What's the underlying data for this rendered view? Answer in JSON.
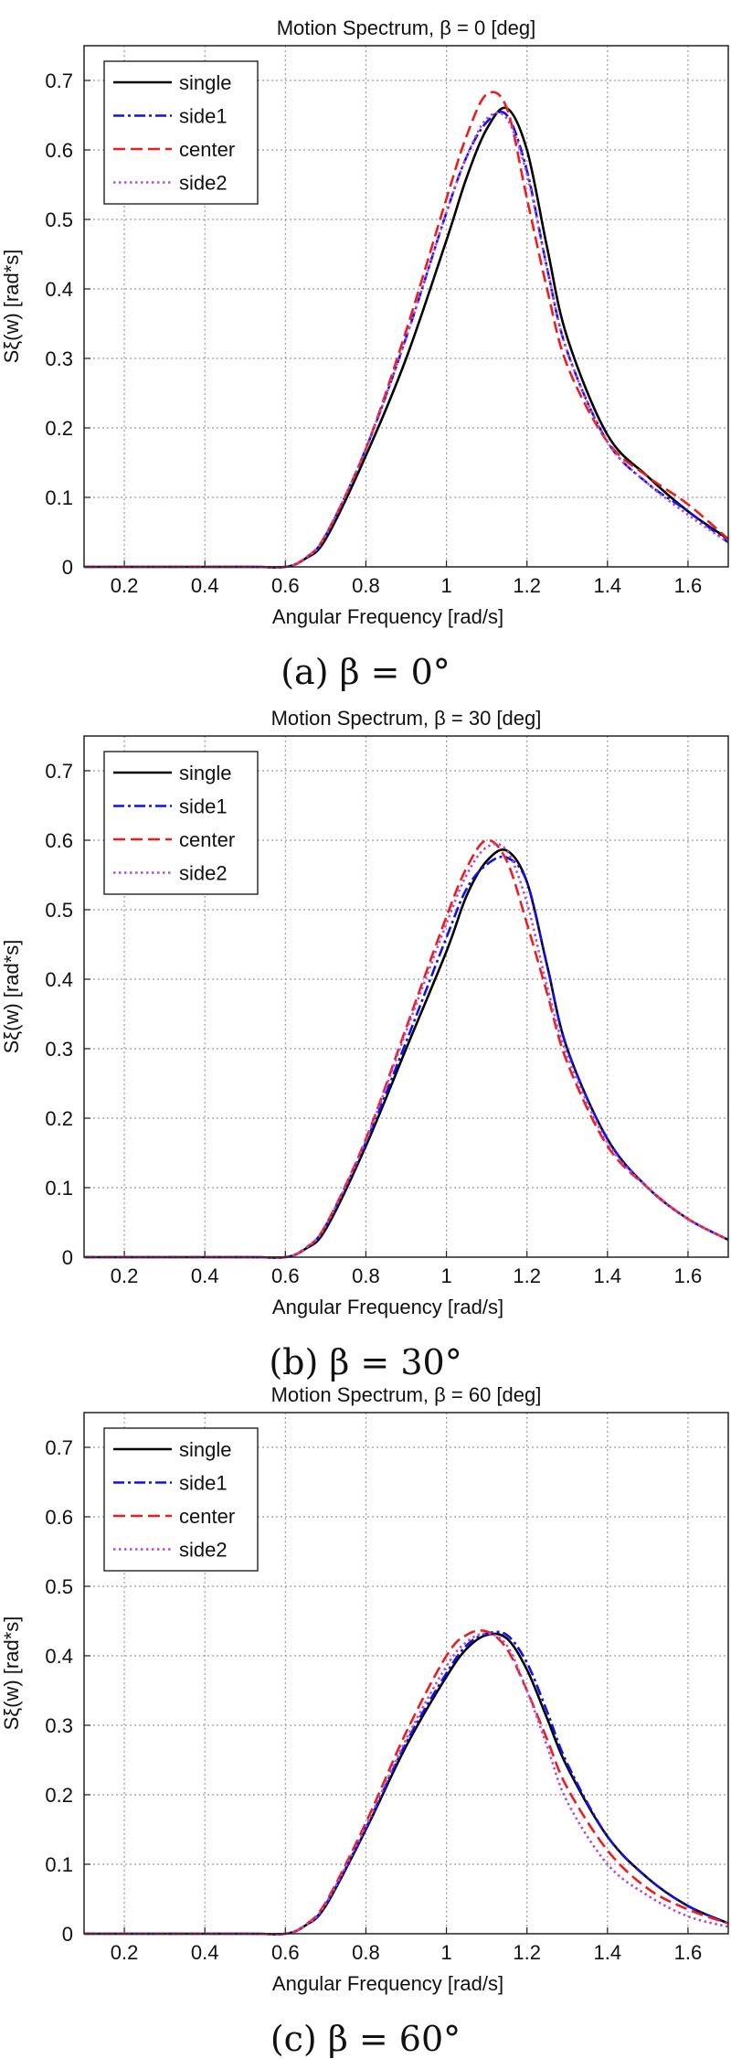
{
  "chart_data": [
    {
      "type": "line",
      "title": "Motion Spectrum,  β = 0 [deg]",
      "caption": "(a)  β = 0°",
      "xlabel": "Angular Frequency [rad/s]",
      "ylabel": "Sξ(w) [rad*s]",
      "xlim": [
        0.1,
        1.7
      ],
      "ylim": [
        0,
        0.75
      ],
      "xticks": [
        "0.2",
        "0.4",
        "0.6",
        "0.8",
        "1",
        "1.2",
        "1.4",
        "1.6"
      ],
      "yticks": [
        "0",
        "0.1",
        "0.2",
        "0.3",
        "0.4",
        "0.5",
        "0.6",
        "0.7"
      ],
      "grid": true,
      "legend_position": "top-left",
      "series": [
        {
          "name": "single",
          "color": "#000000",
          "dash": "solid",
          "x": [
            0.1,
            0.5,
            0.6,
            0.65,
            0.7,
            0.8,
            0.9,
            1.0,
            1.05,
            1.1,
            1.15,
            1.2,
            1.25,
            1.3,
            1.4,
            1.5,
            1.6,
            1.7
          ],
          "y": [
            0,
            0,
            0,
            0.012,
            0.04,
            0.16,
            0.3,
            0.47,
            0.56,
            0.63,
            0.66,
            0.6,
            0.46,
            0.33,
            0.19,
            0.13,
            0.08,
            0.04
          ]
        },
        {
          "name": "side1",
          "color": "#1010ee",
          "dash": "dashdot",
          "x": [
            0.1,
            0.5,
            0.6,
            0.65,
            0.7,
            0.8,
            0.9,
            1.0,
            1.05,
            1.1,
            1.15,
            1.2,
            1.25,
            1.3,
            1.4,
            1.5,
            1.6,
            1.7
          ],
          "y": [
            0,
            0,
            0,
            0.013,
            0.045,
            0.17,
            0.33,
            0.51,
            0.59,
            0.64,
            0.65,
            0.57,
            0.43,
            0.31,
            0.18,
            0.12,
            0.08,
            0.035
          ]
        },
        {
          "name": "center",
          "color": "#ee1c1c",
          "dash": "dashed",
          "x": [
            0.1,
            0.5,
            0.6,
            0.65,
            0.7,
            0.8,
            0.9,
            1.0,
            1.05,
            1.1,
            1.15,
            1.2,
            1.25,
            1.3,
            1.4,
            1.5,
            1.6,
            1.7
          ],
          "y": [
            0,
            0,
            0,
            0.013,
            0.046,
            0.17,
            0.34,
            0.53,
            0.62,
            0.68,
            0.66,
            0.53,
            0.4,
            0.29,
            0.18,
            0.13,
            0.09,
            0.04
          ]
        },
        {
          "name": "side2",
          "color": "#b84ad0",
          "dash": "dotted",
          "x": [
            0.1,
            0.5,
            0.6,
            0.65,
            0.7,
            0.8,
            0.9,
            1.0,
            1.05,
            1.1,
            1.15,
            1.2,
            1.25,
            1.3,
            1.4,
            1.5,
            1.6,
            1.7
          ],
          "y": [
            0,
            0,
            0,
            0.013,
            0.045,
            0.17,
            0.33,
            0.51,
            0.59,
            0.645,
            0.645,
            0.565,
            0.43,
            0.31,
            0.18,
            0.12,
            0.075,
            0.035
          ]
        }
      ]
    },
    {
      "type": "line",
      "title": "Motion Spectrum,  β = 30 [deg]",
      "caption": "(b)  β = 30°",
      "xlabel": "Angular Frequency [rad/s]",
      "ylabel": "Sξ(w) [rad*s]",
      "xlim": [
        0.1,
        1.7
      ],
      "ylim": [
        0,
        0.75
      ],
      "xticks": [
        "0.2",
        "0.4",
        "0.6",
        "0.8",
        "1",
        "1.2",
        "1.4",
        "1.6"
      ],
      "yticks": [
        "0",
        "0.1",
        "0.2",
        "0.3",
        "0.4",
        "0.5",
        "0.6",
        "0.7"
      ],
      "grid": true,
      "legend_position": "top-left",
      "series": [
        {
          "name": "single",
          "color": "#000000",
          "dash": "solid",
          "x": [
            0.1,
            0.5,
            0.6,
            0.65,
            0.7,
            0.8,
            0.9,
            1.0,
            1.05,
            1.1,
            1.15,
            1.2,
            1.25,
            1.3,
            1.4,
            1.5,
            1.6,
            1.7
          ],
          "y": [
            0,
            0,
            0,
            0.012,
            0.04,
            0.16,
            0.3,
            0.44,
            0.52,
            0.57,
            0.585,
            0.54,
            0.42,
            0.3,
            0.17,
            0.1,
            0.055,
            0.025
          ]
        },
        {
          "name": "side1",
          "color": "#1010ee",
          "dash": "dashdot",
          "x": [
            0.1,
            0.5,
            0.6,
            0.65,
            0.7,
            0.8,
            0.9,
            1.0,
            1.05,
            1.1,
            1.15,
            1.2,
            1.25,
            1.3,
            1.4,
            1.5,
            1.6,
            1.7
          ],
          "y": [
            0,
            0,
            0,
            0.013,
            0.045,
            0.165,
            0.31,
            0.46,
            0.53,
            0.565,
            0.575,
            0.54,
            0.42,
            0.3,
            0.17,
            0.1,
            0.055,
            0.025
          ]
        },
        {
          "name": "center",
          "color": "#ee1c1c",
          "dash": "dashed",
          "x": [
            0.1,
            0.5,
            0.6,
            0.65,
            0.7,
            0.8,
            0.9,
            1.0,
            1.05,
            1.1,
            1.15,
            1.2,
            1.25,
            1.3,
            1.4,
            1.5,
            1.6,
            1.7
          ],
          "y": [
            0,
            0,
            0,
            0.013,
            0.046,
            0.17,
            0.33,
            0.49,
            0.56,
            0.6,
            0.57,
            0.48,
            0.38,
            0.28,
            0.16,
            0.1,
            0.055,
            0.025
          ]
        },
        {
          "name": "side2",
          "color": "#b84ad0",
          "dash": "dotted",
          "x": [
            0.1,
            0.5,
            0.6,
            0.65,
            0.7,
            0.8,
            0.9,
            1.0,
            1.05,
            1.1,
            1.15,
            1.2,
            1.25,
            1.3,
            1.4,
            1.5,
            1.6,
            1.7
          ],
          "y": [
            0,
            0,
            0,
            0.013,
            0.045,
            0.168,
            0.325,
            0.48,
            0.55,
            0.59,
            0.585,
            0.51,
            0.39,
            0.29,
            0.165,
            0.1,
            0.055,
            0.025
          ]
        }
      ]
    },
    {
      "type": "line",
      "title": "Motion Spectrum,  β = 60 [deg]",
      "caption": "(c)  β = 60°",
      "xlabel": "Angular Frequency [rad/s]",
      "ylabel": "Sξ(w) [rad*s]",
      "xlim": [
        0.1,
        1.7
      ],
      "ylim": [
        0,
        0.75
      ],
      "xticks": [
        "0.2",
        "0.4",
        "0.6",
        "0.8",
        "1",
        "1.2",
        "1.4",
        "1.6"
      ],
      "yticks": [
        "0",
        "0.1",
        "0.2",
        "0.3",
        "0.4",
        "0.5",
        "0.6",
        "0.7"
      ],
      "grid": true,
      "legend_position": "top-left",
      "series": [
        {
          "name": "single",
          "color": "#000000",
          "dash": "solid",
          "x": [
            0.1,
            0.5,
            0.6,
            0.65,
            0.7,
            0.8,
            0.9,
            1.0,
            1.05,
            1.1,
            1.15,
            1.2,
            1.25,
            1.3,
            1.4,
            1.5,
            1.6,
            1.7
          ],
          "y": [
            0,
            0,
            0,
            0.012,
            0.04,
            0.15,
            0.27,
            0.37,
            0.41,
            0.43,
            0.425,
            0.38,
            0.31,
            0.24,
            0.14,
            0.08,
            0.04,
            0.015
          ]
        },
        {
          "name": "side1",
          "color": "#1010ee",
          "dash": "dashdot",
          "x": [
            0.1,
            0.5,
            0.6,
            0.65,
            0.7,
            0.8,
            0.9,
            1.0,
            1.05,
            1.1,
            1.15,
            1.2,
            1.25,
            1.3,
            1.4,
            1.5,
            1.6,
            1.7
          ],
          "y": [
            0,
            0,
            0,
            0.012,
            0.042,
            0.152,
            0.275,
            0.375,
            0.415,
            0.432,
            0.43,
            0.39,
            0.32,
            0.245,
            0.14,
            0.08,
            0.04,
            0.015
          ]
        },
        {
          "name": "center",
          "color": "#ee1c1c",
          "dash": "dashed",
          "x": [
            0.1,
            0.5,
            0.6,
            0.65,
            0.7,
            0.8,
            0.9,
            1.0,
            1.05,
            1.1,
            1.15,
            1.2,
            1.25,
            1.3,
            1.4,
            1.5,
            1.6,
            1.7
          ],
          "y": [
            0,
            0,
            0,
            0.013,
            0.045,
            0.16,
            0.29,
            0.4,
            0.43,
            0.435,
            0.41,
            0.35,
            0.28,
            0.21,
            0.12,
            0.065,
            0.035,
            0.015
          ]
        },
        {
          "name": "side2",
          "color": "#b84ad0",
          "dash": "dotted",
          "x": [
            0.1,
            0.5,
            0.6,
            0.65,
            0.7,
            0.8,
            0.9,
            1.0,
            1.05,
            1.1,
            1.15,
            1.2,
            1.25,
            1.3,
            1.4,
            1.5,
            1.6,
            1.7
          ],
          "y": [
            0,
            0,
            0,
            0.012,
            0.043,
            0.155,
            0.28,
            0.385,
            0.42,
            0.432,
            0.415,
            0.35,
            0.27,
            0.19,
            0.1,
            0.055,
            0.025,
            0.01
          ]
        }
      ]
    }
  ]
}
